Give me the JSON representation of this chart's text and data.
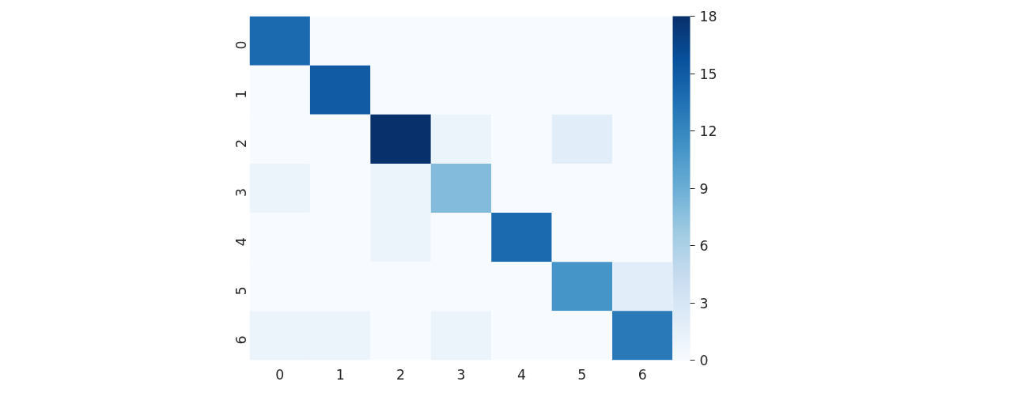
{
  "chart_data": {
    "type": "heatmap",
    "categories": [
      "0",
      "1",
      "2",
      "3",
      "4",
      "5",
      "6"
    ],
    "y_categories": [
      "0",
      "1",
      "2",
      "3",
      "4",
      "5",
      "6"
    ],
    "cells": [
      [
        14,
        0,
        0,
        0,
        0,
        0,
        0
      ],
      [
        0,
        15,
        0,
        0,
        0,
        0,
        0
      ],
      [
        0,
        0,
        18,
        1,
        0,
        2,
        0
      ],
      [
        1,
        0,
        1,
        8,
        0,
        0,
        0
      ],
      [
        0,
        0,
        1,
        0,
        14,
        0,
        0
      ],
      [
        0,
        0,
        0,
        0,
        0,
        11,
        2
      ],
      [
        1,
        1,
        0,
        1,
        0,
        0,
        13
      ]
    ],
    "clim": [
      0,
      18
    ],
    "cticks": [
      0,
      3,
      6,
      9,
      12,
      15,
      18
    ]
  }
}
